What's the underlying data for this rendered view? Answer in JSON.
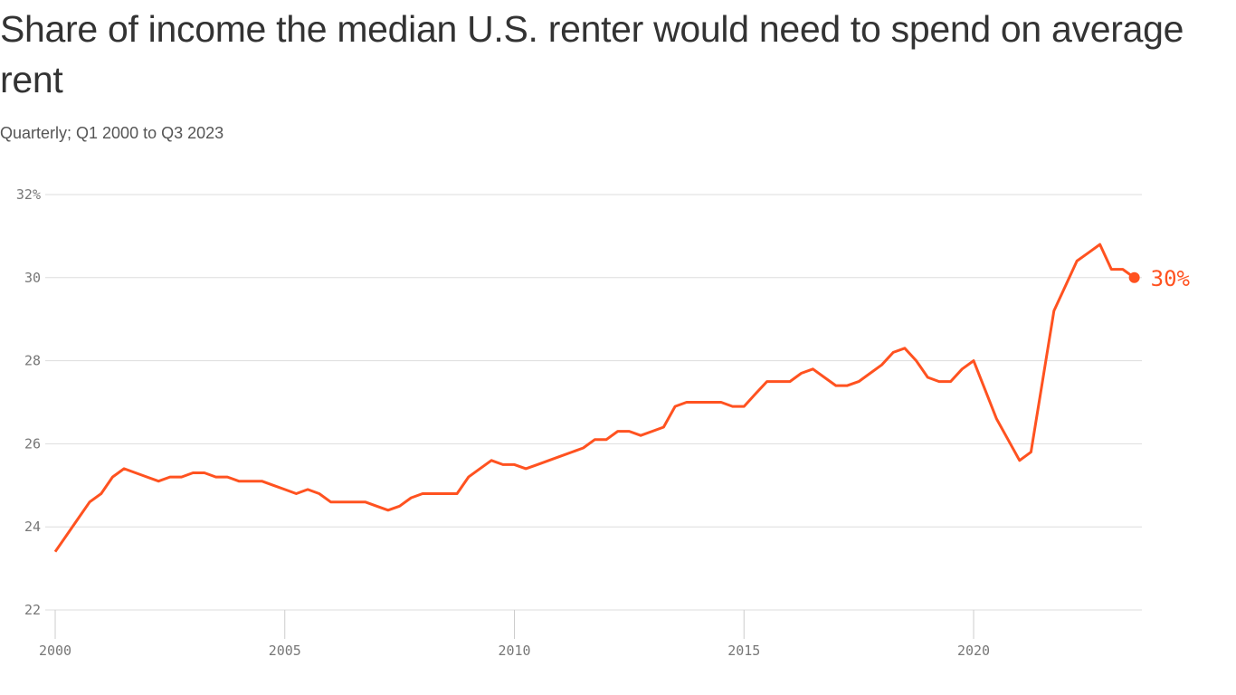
{
  "chart_data": {
    "type": "line",
    "title": "Share of income the median U.S. renter would need to spend on average rent",
    "subtitle": "Quarterly; Q1 2000 to Q3 2023",
    "xlabel": "",
    "ylabel": "",
    "ylim": [
      22,
      32
    ],
    "xlim": [
      2000,
      2023.5
    ],
    "grid": true,
    "y_ticks": [
      "22",
      "24",
      "26",
      "28",
      "30",
      "32%"
    ],
    "y_tick_values": [
      22,
      24,
      26,
      28,
      30,
      32
    ],
    "x_ticks": [
      "2000",
      "2005",
      "2010",
      "2015",
      "2020"
    ],
    "x_tick_values": [
      2000,
      2005,
      2010,
      2015,
      2020
    ],
    "line_color": "#ff5220",
    "end_label": "30%",
    "series": [
      {
        "start": "Q1 2000",
        "frequency": "quarterly",
        "values": [
          23.4,
          23.8,
          24.2,
          24.6,
          24.8,
          25.2,
          25.4,
          25.3,
          25.2,
          25.1,
          25.2,
          25.2,
          25.3,
          25.3,
          25.2,
          25.2,
          25.1,
          25.1,
          25.1,
          25.0,
          24.9,
          24.8,
          24.9,
          24.8,
          24.6,
          24.6,
          24.6,
          24.6,
          24.5,
          24.4,
          24.5,
          24.7,
          24.8,
          24.8,
          24.8,
          24.8,
          25.2,
          25.4,
          25.6,
          25.5,
          25.5,
          25.4,
          25.5,
          25.6,
          25.7,
          25.8,
          25.9,
          26.1,
          26.1,
          26.3,
          26.3,
          26.2,
          26.3,
          26.4,
          26.9,
          27.0,
          27.0,
          27.0,
          27.0,
          26.9,
          26.9,
          27.2,
          27.5,
          27.5,
          27.5,
          27.7,
          27.8,
          27.6,
          27.4,
          27.4,
          27.5,
          27.7,
          27.9,
          28.2,
          28.3,
          28.0,
          27.6,
          27.5,
          27.5,
          27.8,
          28.0,
          27.3,
          26.6,
          26.1,
          25.6,
          25.8,
          27.5,
          29.2,
          29.8,
          30.4,
          30.6,
          30.8,
          30.2,
          30.2,
          30.0
        ]
      }
    ]
  }
}
